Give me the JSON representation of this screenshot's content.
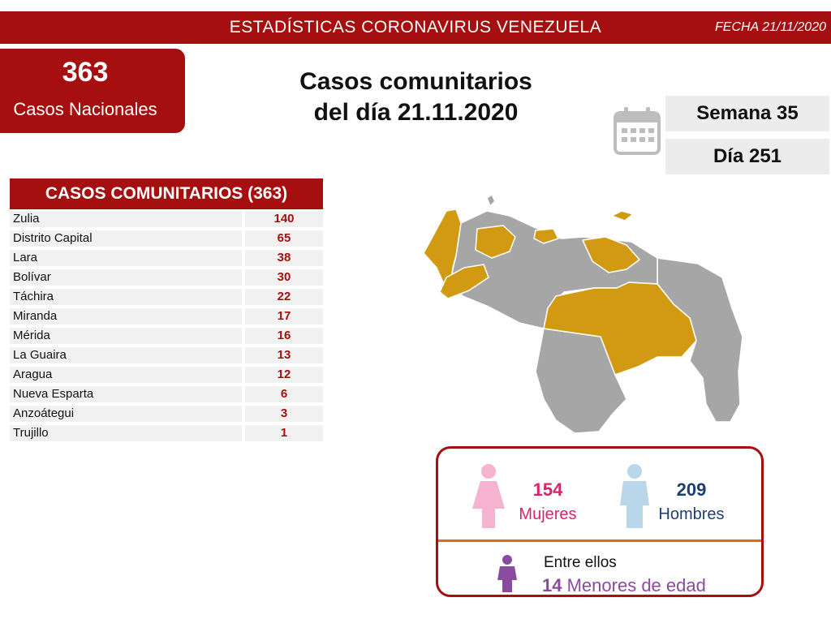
{
  "header": {
    "title": "ESTADÍSTICAS CORONAVIRUS VENEZUELA",
    "date": "FECHA 21/11/2020"
  },
  "national": {
    "count": "363",
    "label": "Casos Nacionales"
  },
  "headline": {
    "line1": "Casos comunitarios",
    "line2": "del día 21.11.2020"
  },
  "week": "Semana 35",
  "day": "Día 251",
  "icons": {
    "calendar": "calendar-icon",
    "female": "female-figure-icon",
    "male": "male-figure-icon",
    "child": "child-figure-icon"
  },
  "colors": {
    "brand_red": "#a50f0f",
    "map_highlight": "#d19a12",
    "map_gray": "#a6a6a6",
    "female": "#d6246e",
    "male": "#1f3f73",
    "minors": "#8a4a9e"
  },
  "gender": {
    "female_count": "154",
    "female_label": "Mujeres",
    "male_count": "209",
    "male_label": "Hombres",
    "between_label": "Entre ellos",
    "minors_count": "14",
    "minors_label": "Menores de edad"
  },
  "chart_data": {
    "type": "table",
    "title": "CASOS COMUNITARIOS (363)",
    "rows": [
      {
        "state": "Zulia",
        "cases": 140
      },
      {
        "state": "Distrito Capital",
        "cases": 65
      },
      {
        "state": "Lara",
        "cases": 38
      },
      {
        "state": "Bolívar",
        "cases": 30
      },
      {
        "state": "Táchira",
        "cases": 22
      },
      {
        "state": "Miranda",
        "cases": 17
      },
      {
        "state": "Mérida",
        "cases": 16
      },
      {
        "state": "La Guaira",
        "cases": 13
      },
      {
        "state": "Aragua",
        "cases": 12
      },
      {
        "state": "Nueva Esparta",
        "cases": 6
      },
      {
        "state": "Anzoátegui",
        "cases": 3
      },
      {
        "state": "Trujillo",
        "cases": 1
      }
    ]
  }
}
